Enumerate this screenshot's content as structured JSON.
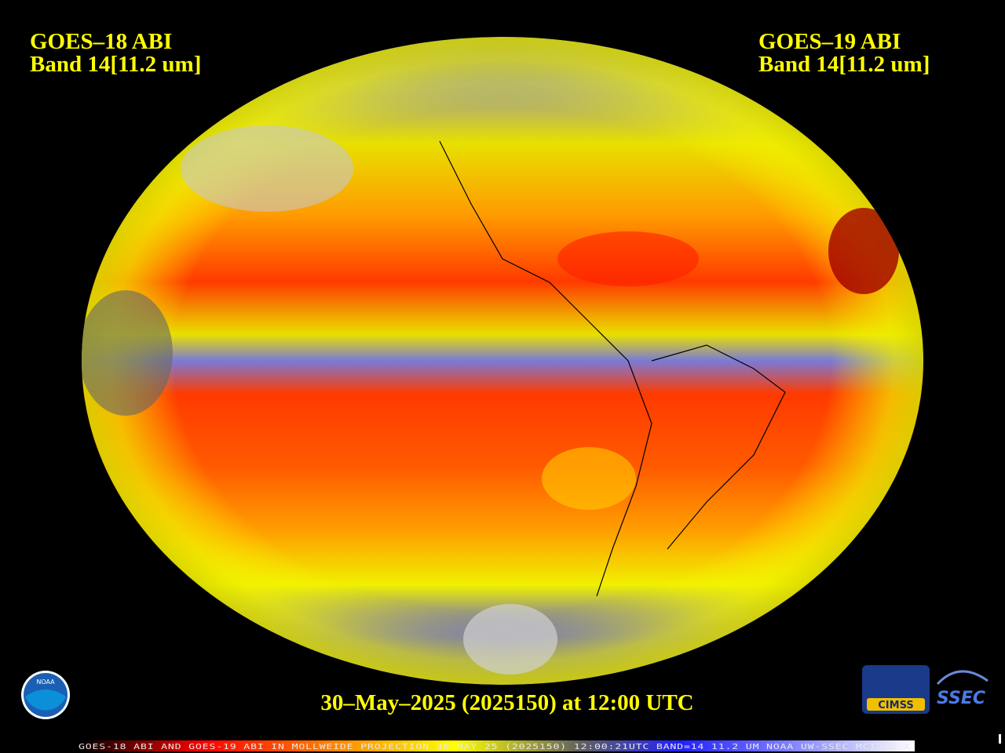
{
  "left_label": {
    "satellite": "GOES–18 ABI",
    "band": "Band 14[11.2 um]"
  },
  "right_label": {
    "satellite": "GOES–19 ABI",
    "band": "Band 14[11.2 um]"
  },
  "timestamp": "30–May–2025 (2025150) at 12:00 UTC",
  "footer": "GOES-18 ABI AND GOES-19 ABI IN MOLLWEIDE PROJECTION 30 MAY 25 (2025150) 12:00:21UTC BAND=14 11.2 UM NOAA UW-SSEC MCIDAS-X",
  "logos": {
    "noaa": "NOAA",
    "cimss": "CIMSS",
    "ssec": "SSEC"
  }
}
